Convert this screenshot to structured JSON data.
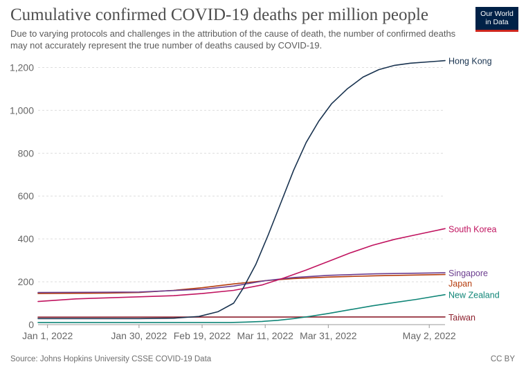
{
  "header": {
    "title": "Cumulative confirmed COVID-19 deaths per million people",
    "subtitle": "Due to varying protocols and challenges in the attribution of the cause of death, the number of confirmed deaths may not accurately represent the true number of deaths caused by COVID-19."
  },
  "logo": {
    "line1": "Our World",
    "line2": "in Data",
    "bg_color": "#002147",
    "accent_color": "#ce261e"
  },
  "footer": {
    "source": "Source: Johns Hopkins University CSSE COVID-19 Data",
    "license": "CC BY"
  },
  "chart_data": {
    "type": "line",
    "title": "Cumulative confirmed COVID-19 deaths per million people",
    "xlabel": "",
    "ylabel": "",
    "x_type": "date",
    "xlim": [
      "2021-12-29",
      "2022-05-07"
    ],
    "ylim": [
      0,
      1250
    ],
    "yticks": [
      0,
      200,
      400,
      600,
      800,
      1000,
      1200
    ],
    "ytick_labels": [
      "0",
      "200",
      "400",
      "600",
      "800",
      "1,000",
      "1,200"
    ],
    "xticks": [
      "2022-01-01",
      "2022-01-30",
      "2022-02-19",
      "2022-03-11",
      "2022-03-31",
      "2022-05-02"
    ],
    "xtick_labels": [
      "Jan 1, 2022",
      "Jan 30, 2022",
      "Feb 19, 2022",
      "Mar 11, 2022",
      "Mar 31, 2022",
      "May 2, 2022"
    ],
    "grid": "horizontal dashed",
    "legend": "labels at line ends (right)",
    "series": [
      {
        "name": "Hong Kong",
        "color": "#18324f",
        "points": [
          [
            "2021-12-29",
            28
          ],
          [
            "2022-01-30",
            28
          ],
          [
            "2022-02-10",
            30
          ],
          [
            "2022-02-18",
            38
          ],
          [
            "2022-02-24",
            60
          ],
          [
            "2022-03-01",
            100
          ],
          [
            "2022-03-04",
            170
          ],
          [
            "2022-03-08",
            280
          ],
          [
            "2022-03-12",
            420
          ],
          [
            "2022-03-16",
            570
          ],
          [
            "2022-03-20",
            720
          ],
          [
            "2022-03-24",
            850
          ],
          [
            "2022-03-28",
            950
          ],
          [
            "2022-04-01",
            1030
          ],
          [
            "2022-04-06",
            1100
          ],
          [
            "2022-04-11",
            1155
          ],
          [
            "2022-04-16",
            1190
          ],
          [
            "2022-04-21",
            1210
          ],
          [
            "2022-04-26",
            1220
          ],
          [
            "2022-05-07",
            1232
          ]
        ]
      },
      {
        "name": "South Korea",
        "color": "#c0135f",
        "points": [
          [
            "2021-12-29",
            108
          ],
          [
            "2022-01-10",
            120
          ],
          [
            "2022-01-20",
            125
          ],
          [
            "2022-01-30",
            130
          ],
          [
            "2022-02-10",
            135
          ],
          [
            "2022-02-19",
            145
          ],
          [
            "2022-03-01",
            160
          ],
          [
            "2022-03-10",
            185
          ],
          [
            "2022-03-17",
            218
          ],
          [
            "2022-03-24",
            255
          ],
          [
            "2022-03-31",
            295
          ],
          [
            "2022-04-07",
            335
          ],
          [
            "2022-04-14",
            370
          ],
          [
            "2022-04-21",
            398
          ],
          [
            "2022-04-28",
            420
          ],
          [
            "2022-05-07",
            448
          ]
        ]
      },
      {
        "name": "Singapore",
        "color": "#6b3d8f",
        "points": [
          [
            "2021-12-29",
            150
          ],
          [
            "2022-01-30",
            152
          ],
          [
            "2022-02-19",
            165
          ],
          [
            "2022-03-01",
            180
          ],
          [
            "2022-03-11",
            205
          ],
          [
            "2022-03-20",
            220
          ],
          [
            "2022-03-31",
            230
          ],
          [
            "2022-04-15",
            237
          ],
          [
            "2022-05-07",
            242
          ]
        ]
      },
      {
        "name": "Japan",
        "color": "#b53c0d",
        "points": [
          [
            "2021-12-29",
            145
          ],
          [
            "2022-01-20",
            147
          ],
          [
            "2022-01-30",
            150
          ],
          [
            "2022-02-10",
            160
          ],
          [
            "2022-02-19",
            172
          ],
          [
            "2022-03-01",
            190
          ],
          [
            "2022-03-11",
            205
          ],
          [
            "2022-03-20",
            215
          ],
          [
            "2022-03-31",
            222
          ],
          [
            "2022-04-15",
            228
          ],
          [
            "2022-05-07",
            234
          ]
        ]
      },
      {
        "name": "New Zealand",
        "color": "#0f8577",
        "points": [
          [
            "2021-12-29",
            10
          ],
          [
            "2022-02-28",
            10
          ],
          [
            "2022-03-05",
            12
          ],
          [
            "2022-03-10",
            15
          ],
          [
            "2022-03-15",
            20
          ],
          [
            "2022-03-20",
            28
          ],
          [
            "2022-03-25",
            38
          ],
          [
            "2022-03-31",
            52
          ],
          [
            "2022-04-07",
            70
          ],
          [
            "2022-04-14",
            88
          ],
          [
            "2022-04-21",
            103
          ],
          [
            "2022-04-28",
            118
          ],
          [
            "2022-05-07",
            140
          ]
        ]
      },
      {
        "name": "Taiwan",
        "color": "#8c1f2c",
        "points": [
          [
            "2021-12-29",
            35
          ],
          [
            "2022-05-07",
            36
          ]
        ]
      }
    ]
  }
}
